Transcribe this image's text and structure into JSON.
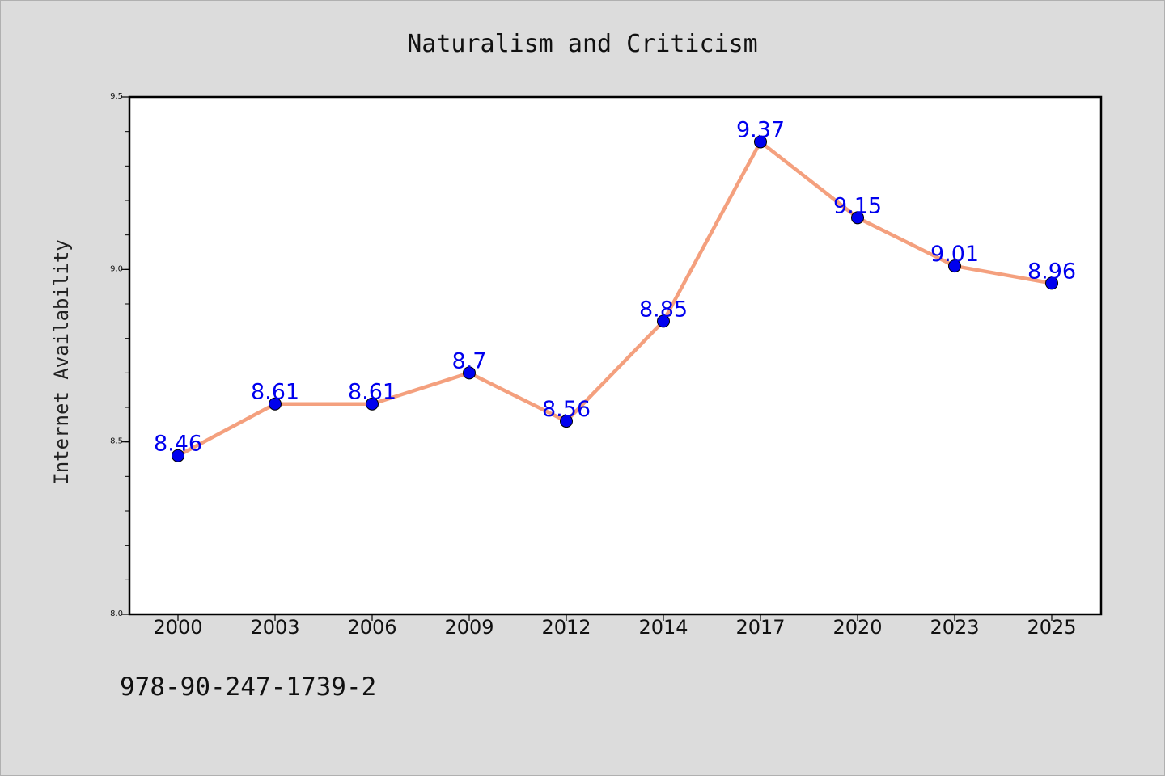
{
  "footer": {
    "code": "978-90-247-1739-2"
  },
  "colors": {
    "line": "#f4a07e",
    "marker": "#0000ee",
    "label": "#0000ee",
    "plot_bg": "#ffffff",
    "page_bg": "#dcdcdc"
  },
  "chart_data": {
    "type": "line",
    "title": "Naturalism and Criticism",
    "xlabel": "",
    "ylabel": "Internet Availability",
    "categories": [
      "2000",
      "2003",
      "2006",
      "2009",
      "2012",
      "2014",
      "2017",
      "2020",
      "2023",
      "2025"
    ],
    "series": [
      {
        "values": [
          8.46,
          8.61,
          8.61,
          8.7,
          8.56,
          8.85,
          9.37,
          9.15,
          9.01,
          8.96
        ]
      }
    ],
    "data_labels": [
      "8.46",
      "8.61",
      "8.61",
      "8.7",
      "8.56",
      "8.85",
      "9.37",
      "9.15",
      "9.01",
      "8.96"
    ],
    "ylim": [
      8.0,
      9.5
    ],
    "yticks": [
      {
        "value": 8.0,
        "label": "8.0"
      },
      {
        "value": 8.5,
        "label": "8.5"
      },
      {
        "value": 9.0,
        "label": "9.0"
      },
      {
        "value": 9.5,
        "label": "9.5"
      }
    ],
    "y_minor_step": 0.1,
    "grid": false,
    "legend": "none"
  }
}
